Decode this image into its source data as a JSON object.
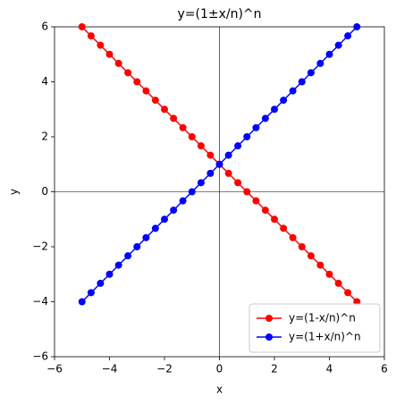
{
  "chart_data": {
    "type": "line",
    "title": "y=(1±x/n)^n",
    "xlabel": "x",
    "ylabel": "y",
    "x": [
      -5,
      -4.67,
      -4.33,
      -4,
      -3.67,
      -3.33,
      -3,
      -2.67,
      -2.33,
      -2,
      -1.67,
      -1.33,
      -1,
      -0.67,
      -0.33,
      0,
      0.33,
      0.67,
      1,
      1.33,
      1.67,
      2,
      2.33,
      2.67,
      3,
      3.33,
      3.67,
      4,
      4.33,
      4.67,
      5
    ],
    "series": [
      {
        "name": "y=(1-x/n)^n",
        "color": "#ff0000",
        "values": [
          6,
          5.67,
          5.33,
          5,
          4.67,
          4.33,
          4,
          3.67,
          3.33,
          3,
          2.67,
          2.33,
          2,
          1.67,
          1.33,
          1,
          0.67,
          0.33,
          0,
          -0.33,
          -0.67,
          -1,
          -1.33,
          -1.67,
          -2,
          -2.33,
          -2.67,
          -3,
          -3.33,
          -3.67,
          -4
        ]
      },
      {
        "name": "y=(1+x/n)^n",
        "color": "#0000ff",
        "values": [
          -4,
          -3.67,
          -3.33,
          -3,
          -2.67,
          -2.33,
          -2,
          -1.67,
          -1.33,
          -1,
          -0.67,
          -0.33,
          0,
          0.33,
          0.67,
          1,
          1.33,
          1.67,
          2,
          2.33,
          2.67,
          3,
          3.33,
          3.67,
          4,
          4.33,
          4.67,
          5,
          5.33,
          5.67,
          6
        ]
      }
    ],
    "xlim": [
      -6,
      6
    ],
    "ylim": [
      -6,
      6
    ],
    "xticks": [
      {
        "value": -6,
        "label": "−6"
      },
      {
        "value": -4,
        "label": "−4"
      },
      {
        "value": -2,
        "label": "−2"
      },
      0,
      2,
      4,
      6
    ],
    "yticks": [
      {
        "value": -6,
        "label": "−6"
      },
      {
        "value": -4,
        "label": "−4"
      },
      {
        "value": -2,
        "label": "−2"
      },
      0,
      2,
      4,
      6
    ],
    "legend": "lower right"
  }
}
